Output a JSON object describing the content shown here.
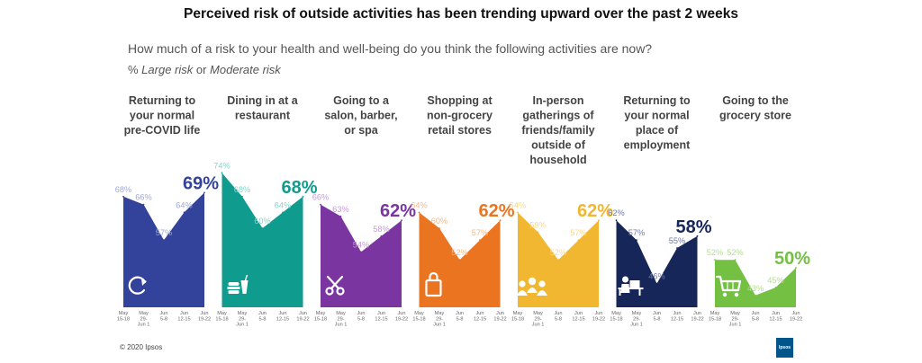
{
  "header": {
    "title": "Perceived risk of outside activities has been trending upward over the past 2 weeks",
    "subtitle": "How much of a risk to your health and well-being do you think the following activities are now?",
    "note_prefix": "% ",
    "note_large": "Large risk",
    "note_or": " or ",
    "note_moderate": "Moderate risk"
  },
  "footer": {
    "copyright": "© 2020 Ipsos",
    "logo_text": "Ipsos"
  },
  "chart_data": {
    "type": "area",
    "ylim": [
      0,
      100
    ],
    "x": [
      {
        "line1": "May",
        "line2": "15-18",
        "line3": ""
      },
      {
        "line1": "May",
        "line2": "29-",
        "line3": "Jun 1"
      },
      {
        "line1": "Jun",
        "line2": "5-8",
        "line3": ""
      },
      {
        "line1": "Jun",
        "line2": "12-15",
        "line3": ""
      },
      {
        "line1": "Jun",
        "line2": "19-22",
        "line3": ""
      }
    ],
    "panels": [
      {
        "caption": [
          "Returning to",
          "your normal",
          "pre-COVID life"
        ],
        "color": "#33429a",
        "light": "#9ea6d8",
        "icon": "refresh-icon",
        "values": [
          68,
          66,
          57,
          64,
          69
        ],
        "labels": [
          "68%",
          "66%",
          "57%",
          "64%",
          "69%"
        ]
      },
      {
        "caption": [
          "Dining in at a",
          "restaurant"
        ],
        "color": "#0f9b8e",
        "light": "#86d2ca",
        "icon": "food-icon",
        "values": [
          74,
          68,
          60,
          64,
          68
        ],
        "labels": [
          "74%",
          "68%",
          "60%",
          "64%",
          "68%"
        ]
      },
      {
        "caption": [
          "Going to a",
          "salon, barber,",
          "or spa"
        ],
        "color": "#7a35a0",
        "light": "#c49ad8",
        "icon": "scissors-icon",
        "values": [
          66,
          63,
          54,
          58,
          62
        ],
        "labels": [
          "66%",
          "63%",
          "54%",
          "58%",
          "62%"
        ]
      },
      {
        "caption": [
          "Shopping at",
          "non-grocery",
          "retail stores"
        ],
        "color": "#ea7420",
        "light": "#f4b98c",
        "icon": "shopping-bag-icon",
        "values": [
          64,
          60,
          52,
          57,
          62
        ],
        "labels": [
          "64%",
          "60%",
          "52%",
          "57%",
          "62%"
        ]
      },
      {
        "caption": [
          "In-person",
          "gatherings of",
          "friends/family",
          "outside of",
          "household"
        ],
        "color": "#f2b730",
        "light": "#f7d88e",
        "icon": "group-icon",
        "values": [
          64,
          59,
          52,
          57,
          62
        ],
        "labels": [
          "64%",
          "59%",
          "52%",
          "57%",
          "62%"
        ]
      },
      {
        "caption": [
          "Returning to",
          "your normal",
          "place of",
          "employment"
        ],
        "color": "#172659",
        "light": "#6f7ba4",
        "icon": "desk-worker-icon",
        "values": [
          62,
          57,
          46,
          55,
          58
        ],
        "labels": [
          "62%",
          "57%",
          "46%",
          "55%",
          "58%"
        ]
      },
      {
        "caption": [
          "Going to the",
          "grocery store"
        ],
        "color": "#74c043",
        "light": "#b4dd93",
        "icon": "cart-icon",
        "values": [
          52,
          52,
          43,
          45,
          50
        ],
        "labels": [
          "52%",
          "52%",
          "43%",
          "45%",
          "50%"
        ]
      }
    ]
  }
}
